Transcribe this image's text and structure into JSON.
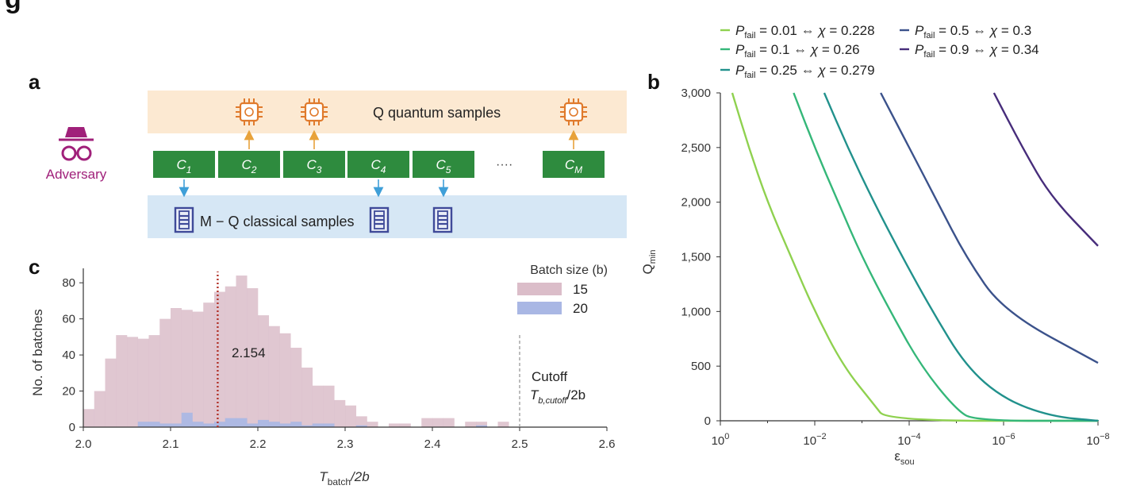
{
  "header_text": "g",
  "panel_a": {
    "label": "a",
    "adversary_label": "Adversary",
    "quantum_label": "Q quantum samples",
    "classical_label": "M − Q classical samples",
    "ellipsis": "····",
    "circuits": [
      {
        "name": "C",
        "sub": "1",
        "route": "classical"
      },
      {
        "name": "C",
        "sub": "2",
        "route": "quantum"
      },
      {
        "name": "C",
        "sub": "3",
        "route": "quantum"
      },
      {
        "name": "C",
        "sub": "4",
        "route": "classical"
      },
      {
        "name": "C",
        "sub": "5",
        "route": "classical"
      },
      {
        "name": "C",
        "sub": "M",
        "route": "quantum"
      }
    ],
    "colors": {
      "quantum_band": "#fce9d2",
      "classical_band": "#d6e7f5",
      "circuit": "#2e8b3e",
      "adversary": "#a0207a",
      "arrow_quantum": "#e8a23a",
      "arrow_classical": "#3f9fd8"
    }
  },
  "panel_b": {
    "label": "b",
    "ylabel_main": "Q",
    "ylabel_sub": "min",
    "xlabel_main": "ε",
    "xlabel_sub": "sou",
    "legend": [
      {
        "p": "0.01",
        "chi": "0.228",
        "color": "#8fd14f"
      },
      {
        "p": "0.1",
        "chi": "0.26",
        "color": "#35b779"
      },
      {
        "p": "0.25",
        "chi": "0.279",
        "color": "#21918c"
      },
      {
        "p": "0.5",
        "chi": "0.3",
        "color": "#3b528b"
      },
      {
        "p": "0.9",
        "chi": "0.34",
        "color": "#472d7b"
      }
    ],
    "legend_symbols": {
      "p_main": "P",
      "p_sub": "fail",
      "equiv": "⇔",
      "chi": "χ"
    }
  },
  "panel_c": {
    "label": "c",
    "legend_title": "Batch size (b)",
    "ylabel": "No. of batches",
    "xlabel_main": "T",
    "xlabel_sub": "batch",
    "xlabel_tail": "/2b",
    "median_label": "2.154",
    "cutoff_label": "Cutoff",
    "cutoff_sub_main": "T",
    "cutoff_sub_sub": "b,cutoff",
    "cutoff_sub_tail": "/2b"
  },
  "chart_data": [
    {
      "type": "bar",
      "panel": "c",
      "subtype": "histogram",
      "xlabel": "T_batch/2b",
      "ylabel": "No. of batches",
      "xlim": [
        2.0,
        2.6
      ],
      "ylim": [
        0,
        88
      ],
      "xticks": [
        "2.0",
        "2.1",
        "2.2",
        "2.3",
        "2.4",
        "2.5",
        "2.6"
      ],
      "yticks": [
        "0",
        "20",
        "40",
        "60",
        "80"
      ],
      "bin_width": 0.0125,
      "bin_start": 2.0,
      "series": [
        {
          "name": "15",
          "color": "#dbbdc9",
          "values": [
            10,
            20,
            38,
            51,
            50,
            49,
            51,
            60,
            66,
            65,
            64,
            69,
            75,
            78,
            84,
            77,
            62,
            56,
            52,
            44,
            33,
            23,
            23,
            15,
            12,
            6,
            3,
            0,
            2,
            2,
            0,
            5,
            5,
            5,
            0,
            3,
            3,
            0,
            3,
            0
          ]
        },
        {
          "name": "20",
          "color": "#a9b7e4",
          "values": [
            0,
            0,
            0,
            0,
            0,
            3,
            3,
            2,
            2,
            8,
            3,
            2,
            3,
            5,
            5,
            2,
            4,
            3,
            2,
            3,
            1,
            2,
            2,
            0,
            0,
            1,
            0,
            0,
            0,
            0,
            0,
            0,
            0,
            0,
            0,
            0,
            1,
            0,
            0,
            0
          ]
        }
      ],
      "annotations": [
        {
          "type": "vline",
          "x": 2.154,
          "label": "2.154",
          "color": "#b2332a",
          "style": "dotted"
        },
        {
          "type": "vline",
          "x": 2.5,
          "label": "Cutoff T_b,cutoff/2b",
          "color": "#999999",
          "style": "dashed"
        }
      ],
      "legend_title": "Batch size (b)",
      "legend_position": "top-right"
    },
    {
      "type": "line",
      "panel": "b",
      "xlabel": "ε_sou",
      "ylabel": "Q_min",
      "x_scale": "log",
      "x_reversed": true,
      "xlim": [
        1,
        1e-08
      ],
      "ylim": [
        0,
        3000
      ],
      "xticks": [
        "10^0",
        "10^-2",
        "10^-4",
        "10^-6",
        "10^-8"
      ],
      "yticks": [
        "0",
        "500",
        "1,000",
        "1,500",
        "2,000",
        "2,500",
        "3,000"
      ],
      "series": [
        {
          "name": "P_fail = 0.01 ⇔ χ = 0.228",
          "points": [
            [
              0.56,
              3000
            ],
            [
              0.25,
              2500
            ],
            [
              0.1,
              2000
            ],
            [
              0.032,
              1500
            ],
            [
              0.01,
              1000
            ],
            [
              0.0025,
              500
            ],
            [
              0.00056,
              150
            ],
            [
              0.0003,
              0
            ],
            [
              1e-08,
              0
            ]
          ]
        },
        {
          "name": "P_fail = 0.1 ⇔ χ = 0.26",
          "points": [
            [
              0.028,
              3000
            ],
            [
              0.01,
              2500
            ],
            [
              0.0032,
              2000
            ],
            [
              0.001,
              1500
            ],
            [
              0.00025,
              1000
            ],
            [
              5.6e-05,
              500
            ],
            [
              1e-05,
              100
            ],
            [
              4e-06,
              0
            ],
            [
              1e-08,
              0
            ]
          ]
        },
        {
          "name": "P_fail = 0.25 ⇔ χ = 0.279",
          "points": [
            [
              0.0063,
              3000
            ],
            [
              0.002,
              2500
            ],
            [
              0.00056,
              2000
            ],
            [
              0.00014,
              1500
            ],
            [
              3.2e-05,
              1000
            ],
            [
              6.3e-06,
              500
            ],
            [
              1e-06,
              200
            ],
            [
              1e-07,
              40
            ],
            [
              1e-08,
              0
            ]
          ]
        },
        {
          "name": "P_fail = 0.5 ⇔ χ = 0.3",
          "points": [
            [
              0.0004,
              3000
            ],
            [
              0.0001,
              2500
            ],
            [
              2.5e-05,
              2000
            ],
            [
              6.3e-06,
              1500
            ],
            [
              1e-06,
              1000
            ],
            [
              1e-08,
              530
            ]
          ]
        },
        {
          "name": "P_fail = 0.9 ⇔ χ = 0.34",
          "points": [
            [
              1.6e-06,
              3000
            ],
            [
              4e-07,
              2500
            ],
            [
              1e-07,
              2050
            ],
            [
              1e-08,
              1600
            ]
          ]
        }
      ],
      "legend_position": "top"
    }
  ]
}
